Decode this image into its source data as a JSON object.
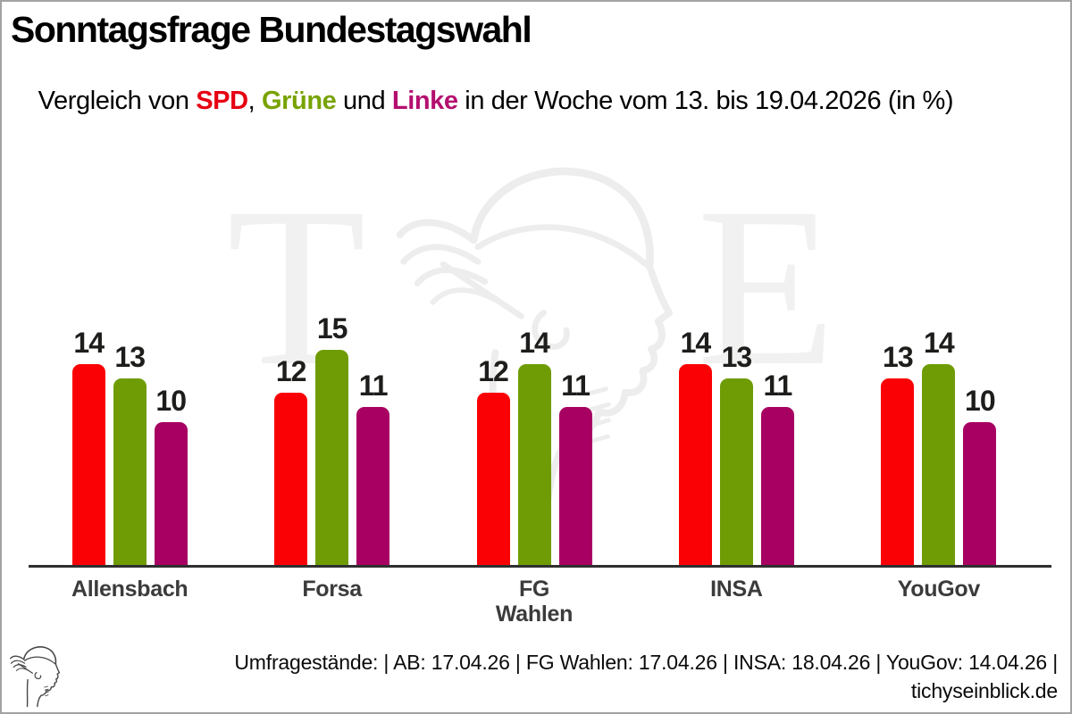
{
  "header": {
    "title": "Sonntagsfrage Bundestagswahl",
    "subtitle": {
      "prefix": "Vergleich von ",
      "spd": "SPD",
      "sep1": ", ",
      "gruene": "Grüne",
      "sep2": " und ",
      "linke": "Linke",
      "suffix": " in der Woche vom 13. bis 19.04.2026 (in %)"
    }
  },
  "colors": {
    "spd_bar": "#fa0205",
    "gruene_bar": "#6f9c05",
    "linke_bar": "#a70062",
    "spd_text": "#e60012",
    "gruene_text": "#78a302",
    "linke_text": "#b40f70",
    "axis": "#2f2f2f",
    "watermark": "#f1f1f1"
  },
  "chart_data": {
    "type": "bar",
    "title": "Sonntagsfrage Bundestagswahl",
    "subtitle": "Vergleich von SPD, Grüne und Linke in der Woche vom 13. bis 19.04.2026 (in %)",
    "categories": [
      "Allensbach",
      "Forsa",
      "FG Wahlen",
      "INSA",
      "YouGov"
    ],
    "series": [
      {
        "name": "SPD",
        "key": "spd",
        "color": "#fa0205",
        "values": [
          14,
          12,
          12,
          14,
          13
        ]
      },
      {
        "name": "Grüne",
        "key": "gruene",
        "color": "#6f9c05",
        "values": [
          13,
          15,
          14,
          13,
          14
        ]
      },
      {
        "name": "Linke",
        "key": "linke",
        "color": "#a70062",
        "values": [
          10,
          11,
          11,
          11,
          10
        ]
      }
    ],
    "unit": "%",
    "ylim": [
      0,
      15
    ],
    "grid": false,
    "legend_position": "none",
    "value_labels": true
  },
  "watermark": {
    "letter_left": "T",
    "letter_right": "E"
  },
  "footer": {
    "line1": "Umfragestände: | AB: 17.04.26 | FG Wahlen: 17.04.26 | INSA: 18.04.26 | YouGov: 14.04.26 |",
    "line2": "tichyseinblick.de",
    "poll_dates": [
      {
        "source": "AB",
        "date": "17.04.26"
      },
      {
        "source": "FG Wahlen",
        "date": "17.04.26"
      },
      {
        "source": "INSA",
        "date": "18.04.26"
      },
      {
        "source": "YouGov",
        "date": "14.04.26"
      }
    ]
  }
}
